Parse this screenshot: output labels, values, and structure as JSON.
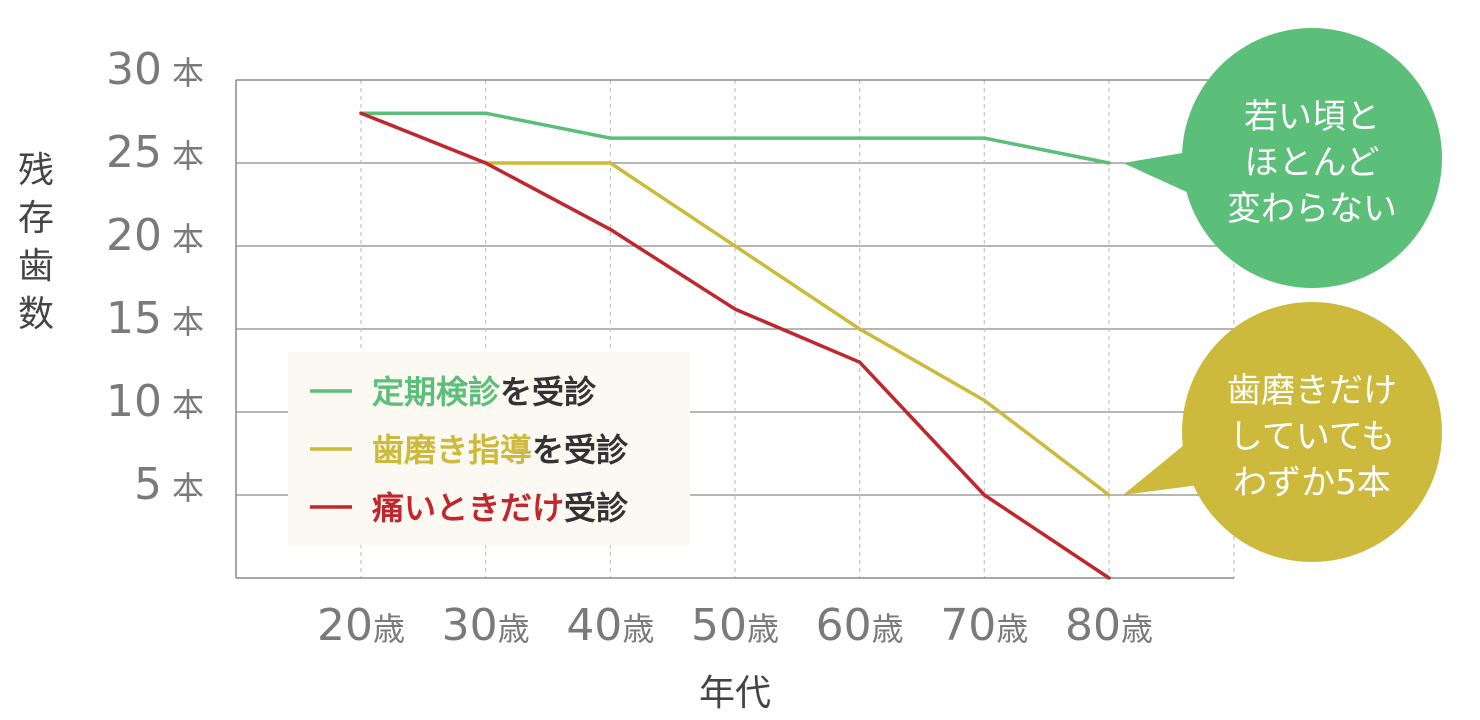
{
  "chart_data": {
    "type": "line",
    "ylabel": "残存歯数",
    "xlabel": "年代",
    "ylim": [
      0,
      30
    ],
    "yticks": [
      {
        "value": 30,
        "num": "30",
        "unit": "本"
      },
      {
        "value": 25,
        "num": "25",
        "unit": "本"
      },
      {
        "value": 20,
        "num": "20",
        "unit": "本"
      },
      {
        "value": 15,
        "num": "15",
        "unit": "本"
      },
      {
        "value": 10,
        "num": "10",
        "unit": "本"
      },
      {
        "value": 5,
        "num": "5",
        "unit": "本"
      }
    ],
    "x": [
      20,
      30,
      40,
      50,
      60,
      70,
      80
    ],
    "xticks": [
      {
        "num": "20",
        "unit": "歳"
      },
      {
        "num": "30",
        "unit": "歳"
      },
      {
        "num": "40",
        "unit": "歳"
      },
      {
        "num": "50",
        "unit": "歳"
      },
      {
        "num": "60",
        "unit": "歳"
      },
      {
        "num": "70",
        "unit": "歳"
      },
      {
        "num": "80",
        "unit": "歳"
      }
    ],
    "grid": true,
    "legend_position": "bottom-left",
    "series": [
      {
        "name": "定期検診",
        "name_suffix": "を受診",
        "color": "#5bbf7a",
        "x": [
          20,
          30,
          40,
          50,
          60,
          70,
          80
        ],
        "values": [
          28,
          28,
          26.5,
          26.5,
          26.5,
          26.5,
          25
        ]
      },
      {
        "name": "歯磨き指導",
        "name_suffix": "を受診",
        "color": "#cdb93c",
        "x": [
          30,
          40,
          50,
          60,
          70,
          80
        ],
        "values": [
          25,
          25,
          20,
          15,
          10.7,
          5
        ]
      },
      {
        "name": "痛いときだけ",
        "name_suffix": "受診",
        "color": "#c0272d",
        "x": [
          20,
          30,
          40,
          50,
          60,
          70,
          80
        ],
        "values": [
          28,
          25,
          21,
          16.2,
          13,
          5,
          0
        ]
      }
    ],
    "annotations": [
      {
        "series": 0,
        "lines": [
          "若い頃と",
          "ほとんど",
          "変わらない"
        ],
        "color": "#5bbf7a"
      },
      {
        "series": 1,
        "lines": [
          "歯磨きだけ",
          "していても",
          "わずか5本"
        ],
        "color": "#cdb93c"
      }
    ]
  }
}
